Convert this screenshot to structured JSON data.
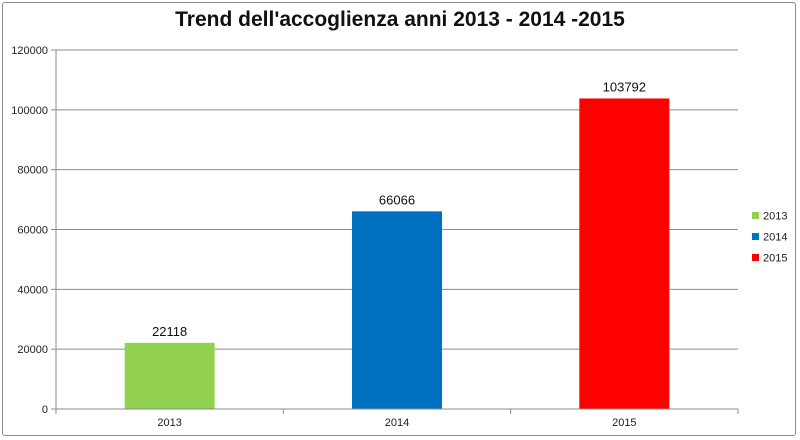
{
  "chart_data": {
    "type": "bar",
    "title": "Trend dell'accoglienza anni 2013 - 2014 -2015",
    "categories": [
      "2013",
      "2014",
      "2015"
    ],
    "values": [
      22118,
      66066,
      103792
    ],
    "colors": [
      "#92d050",
      "#0070c0",
      "#ff0000"
    ],
    "ylim": [
      0,
      120000
    ],
    "yticks": [
      0,
      20000,
      40000,
      60000,
      80000,
      100000,
      120000
    ],
    "grid": true,
    "legend": {
      "position": "right",
      "entries": [
        "2013",
        "2014",
        "2015"
      ]
    },
    "xlabel": "",
    "ylabel": ""
  }
}
